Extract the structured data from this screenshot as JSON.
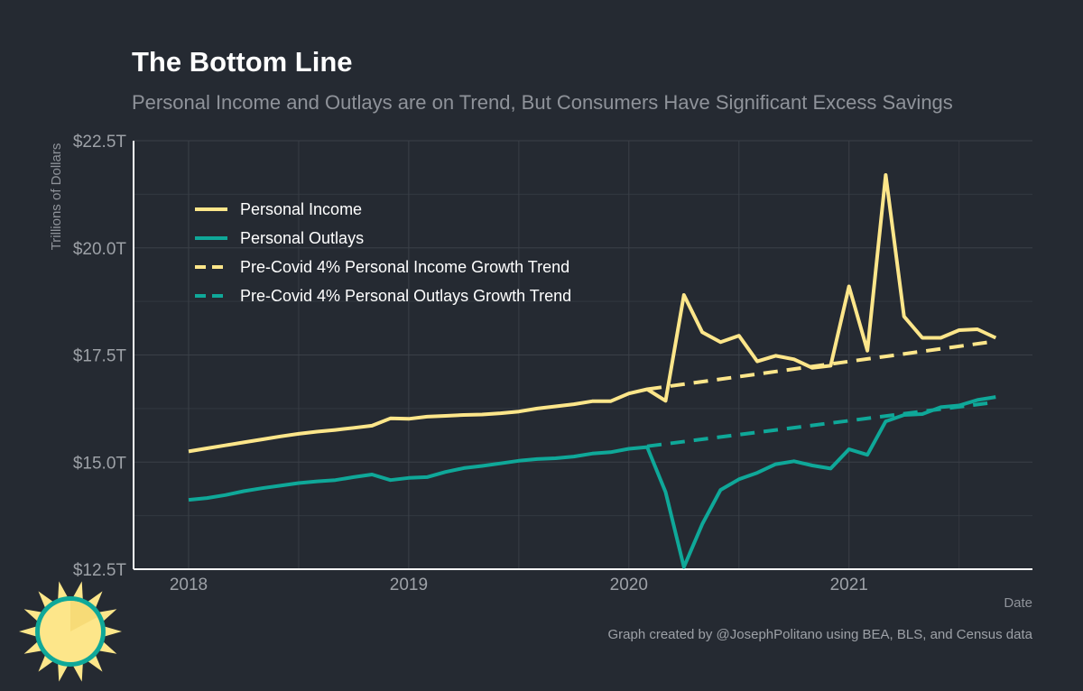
{
  "title": "The Bottom Line",
  "subtitle": "Personal Income and Outlays are on Trend, But Consumers Have Significant Excess Savings",
  "caption": "Graph created by @JosephPolitano using BEA, BLS, and Census data",
  "chart_data": {
    "type": "line",
    "title": "The Bottom Line",
    "subtitle": "Personal Income and Outlays are on Trend, But Consumers Have Significant Excess Savings",
    "xlabel": "Date",
    "ylabel": "Trillions of Dollars",
    "ylim": [
      12.5,
      22.5
    ],
    "y_ticks": [
      12.5,
      15.0,
      17.5,
      20.0,
      22.5
    ],
    "y_tick_labels": [
      "$12.5T",
      "$15.0T",
      "$17.5T",
      "$20.0T",
      "$22.5T"
    ],
    "x_range": [
      "2017-10",
      "2021-11"
    ],
    "x_ticks": [
      "2018",
      "2019",
      "2020",
      "2021"
    ],
    "grid": true,
    "legend_position": "top-left",
    "series": [
      {
        "name": "Personal Income",
        "color": "#fde68a",
        "style": "solid",
        "x": [
          "2018-01",
          "2018-02",
          "2018-03",
          "2018-04",
          "2018-05",
          "2018-06",
          "2018-07",
          "2018-08",
          "2018-09",
          "2018-10",
          "2018-11",
          "2018-12",
          "2019-01",
          "2019-02",
          "2019-03",
          "2019-04",
          "2019-05",
          "2019-06",
          "2019-07",
          "2019-08",
          "2019-09",
          "2019-10",
          "2019-11",
          "2019-12",
          "2020-01",
          "2020-02",
          "2020-03",
          "2020-04",
          "2020-05",
          "2020-06",
          "2020-07",
          "2020-08",
          "2020-09",
          "2020-10",
          "2020-11",
          "2020-12",
          "2021-01",
          "2021-02",
          "2021-03",
          "2021-04",
          "2021-05",
          "2021-06",
          "2021-07",
          "2021-08",
          "2021-09"
        ],
        "values": [
          15.25,
          15.32,
          15.39,
          15.46,
          15.53,
          15.6,
          15.66,
          15.71,
          15.75,
          15.8,
          15.85,
          16.02,
          16.01,
          16.06,
          16.08,
          16.1,
          16.11,
          16.14,
          16.18,
          16.25,
          16.3,
          16.35,
          16.42,
          16.42,
          16.6,
          16.7,
          16.43,
          18.9,
          18.03,
          17.8,
          17.95,
          17.35,
          17.48,
          17.4,
          17.2,
          17.25,
          19.1,
          17.6,
          21.7,
          18.4,
          17.9,
          17.9,
          18.08,
          18.1,
          17.9
        ]
      },
      {
        "name": "Personal Outlays",
        "color": "#0fa899",
        "style": "solid",
        "x": [
          "2018-01",
          "2018-02",
          "2018-03",
          "2018-04",
          "2018-05",
          "2018-06",
          "2018-07",
          "2018-08",
          "2018-09",
          "2018-10",
          "2018-11",
          "2018-12",
          "2019-01",
          "2019-02",
          "2019-03",
          "2019-04",
          "2019-05",
          "2019-06",
          "2019-07",
          "2019-08",
          "2019-09",
          "2019-10",
          "2019-11",
          "2019-12",
          "2020-01",
          "2020-02",
          "2020-03",
          "2020-04",
          "2020-05",
          "2020-06",
          "2020-07",
          "2020-08",
          "2020-09",
          "2020-10",
          "2020-11",
          "2020-12",
          "2021-01",
          "2021-02",
          "2021-03",
          "2021-04",
          "2021-05",
          "2021-06",
          "2021-07",
          "2021-08",
          "2021-09"
        ],
        "values": [
          14.12,
          14.16,
          14.23,
          14.32,
          14.39,
          14.45,
          14.51,
          14.55,
          14.58,
          14.65,
          14.71,
          14.58,
          14.63,
          14.65,
          14.77,
          14.86,
          14.91,
          14.97,
          15.03,
          15.07,
          15.09,
          15.13,
          15.2,
          15.23,
          15.31,
          15.35,
          14.3,
          12.55,
          13.55,
          14.35,
          14.6,
          14.75,
          14.95,
          15.02,
          14.92,
          14.85,
          15.3,
          15.17,
          15.95,
          16.1,
          16.12,
          16.28,
          16.32,
          16.45,
          16.52
        ]
      },
      {
        "name": "Pre-Covid 4% Personal Income Growth Trend",
        "color": "#fde68a",
        "style": "dashed",
        "x": [
          "2020-02",
          "2021-09"
        ],
        "values": [
          16.7,
          17.82
        ]
      },
      {
        "name": "Pre-Covid 4% Personal Outlays Growth Trend",
        "color": "#0fa899",
        "style": "dashed",
        "x": [
          "2020-02",
          "2021-09"
        ],
        "values": [
          15.37,
          16.4
        ]
      }
    ]
  }
}
